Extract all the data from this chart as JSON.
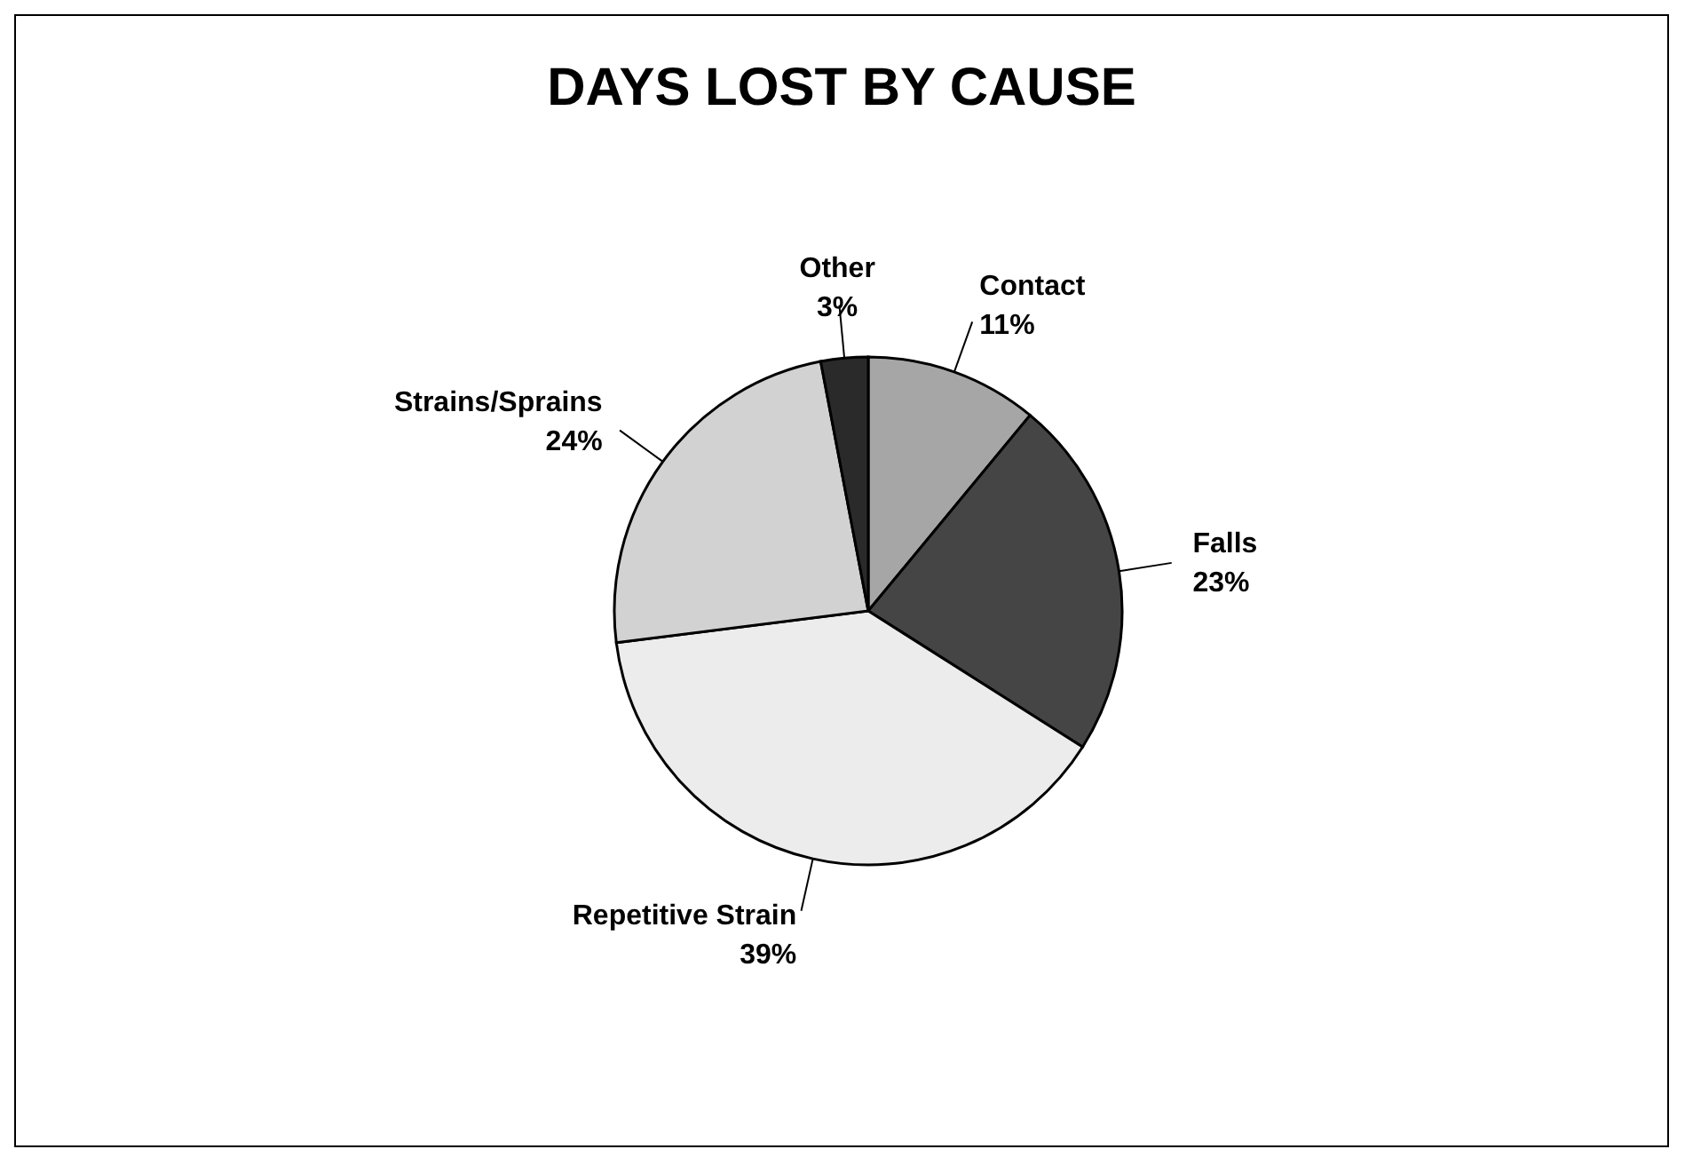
{
  "chart_data": {
    "type": "pie",
    "title": "DAYS LOST BY CAUSE",
    "categories": [
      "Contact",
      "Falls",
      "Repetitive Strain",
      "Strains/Sprains",
      "Other"
    ],
    "values": [
      11,
      23,
      39,
      24,
      3
    ],
    "value_labels": [
      "11%",
      "23%",
      "39%",
      "24%",
      "3%"
    ],
    "colors": [
      "#a6a6a6",
      "#454545",
      "#ececec",
      "#d2d2d2",
      "#2a2a2a"
    ]
  }
}
